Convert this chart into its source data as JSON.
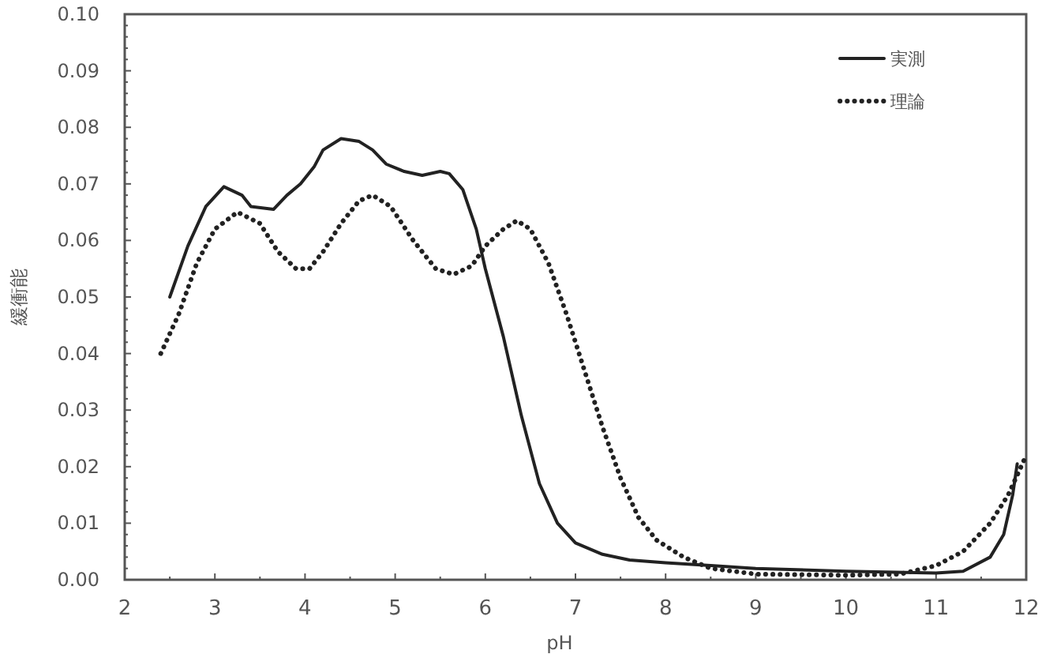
{
  "chart_data": {
    "type": "line",
    "xlabel": "pH",
    "ylabel": "緩衝能",
    "xlim": [
      2,
      12
    ],
    "ylim": [
      0,
      0.1
    ],
    "xticks": [
      2,
      3,
      4,
      5,
      6,
      7,
      8,
      9,
      10,
      11,
      12
    ],
    "yticks": [
      {
        "value": 0,
        "label": "0.00"
      },
      {
        "value": 0.01,
        "label": "0.01"
      },
      {
        "value": 0.02,
        "label": "0.02"
      },
      {
        "value": 0.03,
        "label": "0.03"
      },
      {
        "value": 0.04,
        "label": "0.04"
      },
      {
        "value": 0.05,
        "label": "0.05"
      },
      {
        "value": 0.06,
        "label": "0.06"
      },
      {
        "value": 0.07,
        "label": "0.07"
      },
      {
        "value": 0.08,
        "label": "0.08"
      },
      {
        "value": 0.09,
        "label": "0.09"
      },
      {
        "value": 0.1,
        "label": "0.10"
      }
    ],
    "grid": false,
    "legend": "top right",
    "marker": "none",
    "series": [
      {
        "name": "実測",
        "color": "#222222",
        "line_style": "solid",
        "x": [
          2.5,
          2.7,
          2.9,
          3.1,
          3.3,
          3.4,
          3.65,
          3.8,
          3.95,
          4.1,
          4.2,
          4.4,
          4.6,
          4.75,
          4.9,
          5.1,
          5.3,
          5.5,
          5.6,
          5.75,
          5.9,
          6.0,
          6.2,
          6.4,
          6.6,
          6.8,
          7.0,
          7.3,
          7.6,
          8.0,
          8.5,
          9.0,
          10.0,
          11.0,
          11.3,
          11.6,
          11.75,
          11.85,
          11.9
        ],
        "values": [
          0.05,
          0.059,
          0.066,
          0.0695,
          0.068,
          0.066,
          0.0655,
          0.068,
          0.07,
          0.073,
          0.076,
          0.078,
          0.0775,
          0.076,
          0.0735,
          0.0722,
          0.0715,
          0.0722,
          0.0718,
          0.069,
          0.062,
          0.055,
          0.043,
          0.029,
          0.017,
          0.01,
          0.0065,
          0.0045,
          0.0035,
          0.003,
          0.0025,
          0.002,
          0.0015,
          0.0012,
          0.0015,
          0.004,
          0.008,
          0.015,
          0.0205
        ]
      },
      {
        "name": "理論",
        "color": "#222222",
        "line_style": "dotted",
        "x": [
          2.4,
          2.6,
          2.8,
          3.0,
          3.25,
          3.5,
          3.7,
          3.9,
          4.05,
          4.2,
          4.4,
          4.6,
          4.75,
          4.95,
          5.2,
          5.45,
          5.65,
          5.85,
          6.0,
          6.2,
          6.35,
          6.5,
          6.7,
          6.9,
          7.1,
          7.3,
          7.5,
          7.7,
          7.9,
          8.2,
          8.5,
          9.0,
          10.0,
          10.6,
          11.0,
          11.3,
          11.6,
          11.8,
          12.0
        ],
        "values": [
          0.04,
          0.047,
          0.056,
          0.062,
          0.065,
          0.063,
          0.058,
          0.055,
          0.055,
          0.058,
          0.063,
          0.067,
          0.068,
          0.066,
          0.06,
          0.055,
          0.054,
          0.0555,
          0.059,
          0.062,
          0.0635,
          0.062,
          0.056,
          0.047,
          0.037,
          0.027,
          0.018,
          0.011,
          0.007,
          0.004,
          0.002,
          0.001,
          0.0008,
          0.001,
          0.0025,
          0.005,
          0.01,
          0.015,
          0.022
        ]
      }
    ]
  }
}
